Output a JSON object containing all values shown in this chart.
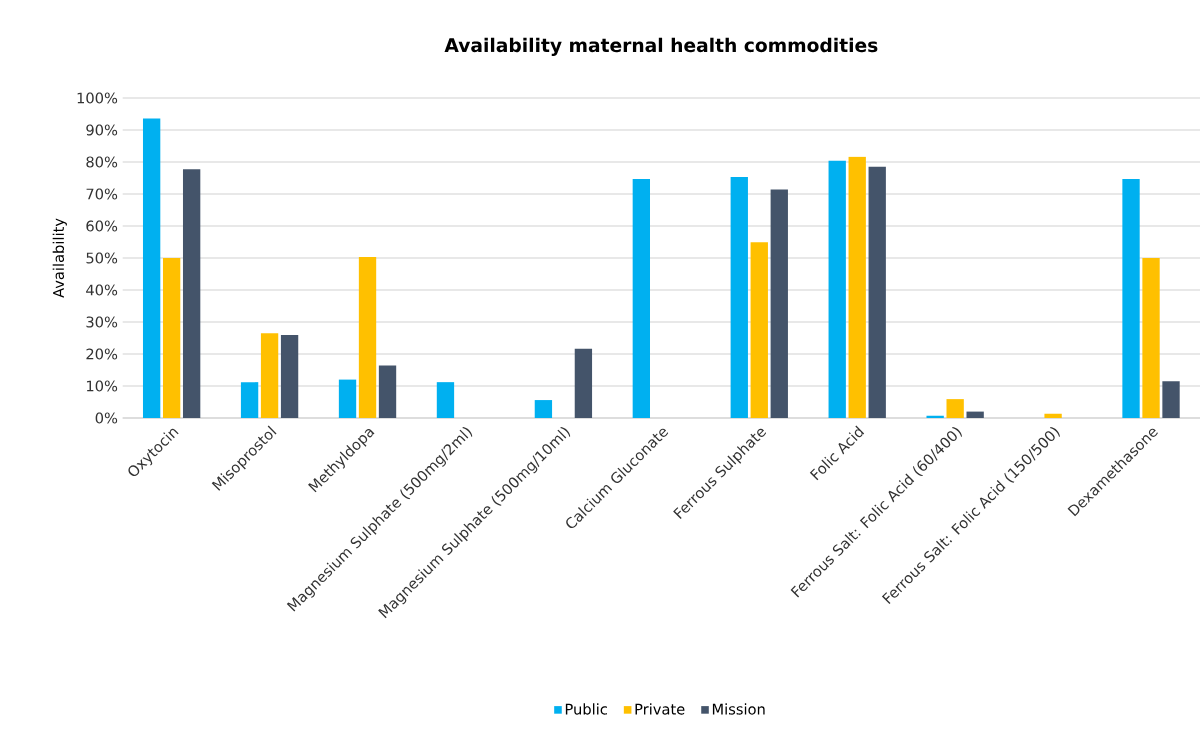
{
  "chart_data": {
    "type": "bar",
    "title": "Availability maternal health commodities",
    "ylabel": "Availability",
    "categories": [
      "Oxytocin",
      "Misoprostol",
      "Methyldopa",
      "Magnesium Sulphate (500mg/2ml)",
      "Magnesium Sulphate (500mg/10ml)",
      "Calcium Gluconate",
      "Ferrous Sulphate",
      "Folic Acid",
      "Ferrous Salt: Folic Acid (60/400)",
      "Ferrous Salt: Folic Acid (150/500)",
      "Dexamethasone"
    ],
    "series": [
      {
        "name": "Public",
        "color": "#00b0f0",
        "values": [
          93.6,
          11.2,
          12,
          11.2,
          5.6,
          74.7,
          75.3,
          80.4,
          0.7,
          0,
          74.7
        ]
      },
      {
        "name": "Private",
        "color": "#ffc000",
        "values": [
          50,
          26.5,
          50.3,
          0,
          0,
          0,
          54.9,
          81.6,
          5.9,
          1.3,
          50
        ]
      },
      {
        "name": "Mission",
        "color": "#44546a",
        "values": [
          77.7,
          25.9,
          16.4,
          0,
          21.6,
          0,
          71.4,
          78.5,
          2,
          0,
          11.5
        ]
      }
    ],
    "ylim": [
      0,
      100
    ],
    "yticks": [
      {
        "value": 0,
        "label": "0%"
      },
      {
        "value": 10,
        "label": "10%"
      },
      {
        "value": 20,
        "label": "20%"
      },
      {
        "value": 30,
        "label": "30%"
      },
      {
        "value": 40,
        "label": "40%"
      },
      {
        "value": 50,
        "label": "50%"
      },
      {
        "value": 60,
        "label": "60%"
      },
      {
        "value": 70,
        "label": "70%"
      },
      {
        "value": 80,
        "label": "80%"
      },
      {
        "value": 90,
        "label": "90%"
      },
      {
        "value": 100,
        "label": "100%"
      }
    ],
    "grid": "y",
    "legend": "bottom"
  }
}
